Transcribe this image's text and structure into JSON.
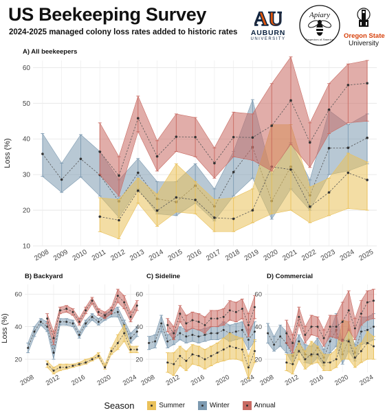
{
  "header": {
    "title": "US Beekeeping Survey",
    "subtitle": "2024-2025 managed colony loss rates added to historic rates"
  },
  "logos": {
    "auburn": {
      "name": "AUBURN",
      "sub": "UNIVERSITY",
      "mark": "AU"
    },
    "apiary": {
      "text": "Apiary",
      "sub": "Inspectors of America",
      "icon": "bee-icon"
    },
    "osu": {
      "name1": "Oregon State",
      "name2": "University",
      "icon": "tower-icon"
    }
  },
  "colors": {
    "Summer": "#eac15a",
    "Winter": "#7d9ab1",
    "Annual": "#c86a62"
  },
  "legend": {
    "title": "Season",
    "items": [
      "Summer",
      "Winter",
      "Annual"
    ]
  },
  "chart_data": [
    {
      "type": "line",
      "title": "A) All beekeepers",
      "ylabel": "Loss (%)",
      "ylim": [
        10,
        62
      ],
      "yticks": [
        10,
        20,
        30,
        40,
        50,
        60
      ],
      "xlim": [
        2007.5,
        2025.5
      ],
      "xticks": [
        2008,
        2009,
        2010,
        2011,
        2012,
        2013,
        2014,
        2015,
        2016,
        2017,
        2018,
        2019,
        2020,
        2021,
        2022,
        2023,
        2024,
        2025
      ],
      "grid": true,
      "series": [
        {
          "name": "Winter",
          "x": [
            2008,
            2009,
            2010,
            2011,
            2012,
            2013,
            2014,
            2015,
            2016,
            2017,
            2018,
            2019,
            2020,
            2021,
            2022,
            2023,
            2024,
            2025
          ],
          "y": [
            35.8,
            28.6,
            34.4,
            29.9,
            22.5,
            30.5,
            23.2,
            22.3,
            26.9,
            21.1,
            30.7,
            37.7,
            22.6,
            32.2,
            24.2,
            37.4,
            37.5,
            40.3
          ],
          "lower": [
            29.5,
            25.0,
            29.3,
            24.0,
            18.0,
            26.0,
            19.0,
            18.5,
            22.0,
            17.0,
            24.0,
            29.0,
            17.5,
            26.0,
            20.0,
            30.0,
            31.0,
            33.0
          ],
          "upper": [
            41.5,
            33.2,
            41.2,
            36.5,
            28.5,
            34.5,
            28.0,
            28.0,
            33.0,
            26.0,
            36.5,
            51.0,
            30.0,
            39.0,
            28.5,
            48.0,
            44.0,
            47.0
          ]
        },
        {
          "name": "Summer",
          "x": [
            2011,
            2012,
            2013,
            2014,
            2015,
            2016,
            2017,
            2018,
            2019,
            2020,
            2021,
            2022,
            2023,
            2024,
            2025
          ],
          "y": [
            18.2,
            17.2,
            25.5,
            19.9,
            23.6,
            22.9,
            17.9,
            17.6,
            20.0,
            32.2,
            31.4,
            21.0,
            25.0,
            30.5,
            28.5
          ],
          "lower": [
            14.0,
            12.0,
            22.0,
            15.5,
            19.5,
            19.0,
            14.0,
            14.0,
            16.5,
            19.0,
            20.0,
            16.5,
            18.5,
            20.5,
            20.0
          ],
          "upper": [
            23.5,
            23.0,
            29.0,
            24.5,
            33.0,
            28.0,
            23.0,
            23.5,
            26.0,
            44.0,
            44.0,
            26.5,
            29.0,
            36.0,
            33.5
          ]
        },
        {
          "name": "Annual",
          "x": [
            2011,
            2012,
            2013,
            2014,
            2015,
            2016,
            2017,
            2018,
            2019,
            2020,
            2021,
            2022,
            2023,
            2024,
            2025
          ],
          "y": [
            36.4,
            29.7,
            45.8,
            35.1,
            40.6,
            40.5,
            33.2,
            40.5,
            40.4,
            43.7,
            50.8,
            39.0,
            48.2,
            55.1,
            55.6
          ],
          "lower": [
            30.0,
            24.0,
            42.0,
            31.0,
            36.5,
            35.0,
            29.0,
            35.0,
            34.0,
            31.0,
            38.5,
            32.0,
            41.5,
            44.5,
            45.0
          ],
          "upper": [
            44.5,
            35.0,
            52.0,
            39.5,
            47.0,
            46.0,
            37.5,
            47.5,
            47.0,
            55.5,
            63.0,
            44.5,
            55.5,
            61.0,
            62.0
          ]
        }
      ]
    },
    {
      "type": "line",
      "title": "B) Backyard",
      "ylabel": "Loss (%)",
      "ylim": [
        12,
        66
      ],
      "yticks": [
        20,
        40,
        60
      ],
      "xlim": [
        2007.5,
        2025.5
      ],
      "xticks": [
        2008,
        2012,
        2016,
        2020,
        2024
      ],
      "grid": true,
      "series": [
        {
          "name": "Winter",
          "x": [
            2008,
            2009,
            2010,
            2011,
            2012,
            2013,
            2014,
            2015,
            2016,
            2017,
            2018,
            2019,
            2020,
            2021,
            2022,
            2023,
            2024,
            2025
          ],
          "y": [
            27,
            37,
            43,
            40,
            24,
            43,
            43,
            42,
            35,
            42,
            46,
            43,
            46,
            48,
            49,
            41,
            33,
            37
          ],
          "lower": [
            24,
            34,
            41,
            37,
            20,
            41,
            41,
            40,
            33,
            40,
            44,
            41,
            44,
            46,
            46,
            37,
            30,
            34
          ],
          "upper": [
            30,
            40,
            45,
            43,
            28,
            45,
            45,
            44,
            37,
            44,
            48,
            45,
            48,
            50,
            52,
            44,
            36,
            40
          ]
        },
        {
          "name": "Summer",
          "x": [
            2011,
            2012,
            2013,
            2014,
            2015,
            2016,
            2017,
            2018,
            2019,
            2020,
            2021,
            2022,
            2023,
            2024,
            2025
          ],
          "y": [
            17,
            13,
            15,
            15,
            16,
            17,
            18,
            20,
            22,
            15,
            25,
            30,
            36,
            26,
            26
          ],
          "lower": [
            15,
            11,
            13,
            14,
            15,
            16,
            17,
            19,
            21,
            14,
            23,
            26,
            31,
            24,
            24
          ],
          "upper": [
            19,
            15,
            17,
            17,
            17,
            18,
            20,
            21,
            24,
            17,
            27,
            35,
            41,
            28,
            28
          ]
        },
        {
          "name": "Annual",
          "x": [
            2011,
            2012,
            2013,
            2014,
            2015,
            2016,
            2017,
            2018,
            2019,
            2020,
            2021,
            2022,
            2023,
            2024,
            2025
          ],
          "y": [
            45,
            33,
            50,
            51,
            49,
            43,
            50,
            56,
            49,
            47,
            50,
            59,
            55,
            46,
            53
          ],
          "lower": [
            42,
            29,
            48,
            49,
            47,
            41,
            48,
            54,
            47,
            45,
            48,
            55,
            51,
            43,
            50
          ],
          "upper": [
            48,
            37,
            52,
            53,
            51,
            45,
            52,
            58,
            51,
            49,
            52,
            63,
            59,
            49,
            56
          ]
        }
      ]
    },
    {
      "type": "line",
      "title": "C) Sideline",
      "ylim": [
        12,
        66
      ],
      "yticks": [
        20,
        40,
        60
      ],
      "xlim": [
        2007.5,
        2025.5
      ],
      "xticks": [
        2008,
        2012,
        2016,
        2020,
        2024
      ],
      "grid": true,
      "series": [
        {
          "name": "Winter",
          "x": [
            2008,
            2009,
            2010,
            2011,
            2012,
            2013,
            2014,
            2015,
            2016,
            2017,
            2018,
            2019,
            2020,
            2021,
            2022,
            2023,
            2024,
            2025
          ],
          "y": [
            30,
            31,
            42,
            31,
            33,
            36,
            34,
            35,
            34,
            35,
            36,
            36,
            38,
            36,
            37,
            38,
            32,
            37
          ],
          "lower": [
            26,
            27,
            37,
            27,
            29,
            32,
            30,
            31,
            30,
            31,
            32,
            32,
            33,
            31,
            32,
            33,
            26,
            31
          ],
          "upper": [
            34,
            35,
            47,
            35,
            37,
            40,
            38,
            39,
            38,
            39,
            40,
            40,
            43,
            41,
            42,
            43,
            38,
            43
          ]
        },
        {
          "name": "Summer",
          "x": [
            2011,
            2012,
            2013,
            2014,
            2015,
            2016,
            2017,
            2018,
            2019,
            2020,
            2021,
            2022,
            2023,
            2024,
            2025
          ],
          "y": [
            18,
            17,
            22,
            19,
            23,
            22,
            20,
            22,
            24,
            26,
            28,
            27,
            26,
            15,
            25
          ],
          "lower": [
            12,
            10,
            16,
            13,
            17,
            16,
            14,
            16,
            18,
            19,
            20,
            20,
            19,
            8,
            18
          ],
          "upper": [
            24,
            24,
            28,
            25,
            29,
            28,
            26,
            28,
            30,
            33,
            36,
            34,
            33,
            22,
            32
          ]
        },
        {
          "name": "Annual",
          "x": [
            2011,
            2012,
            2013,
            2014,
            2015,
            2016,
            2017,
            2018,
            2019,
            2020,
            2021,
            2022,
            2023,
            2024,
            2025
          ],
          "y": [
            41,
            36,
            48,
            42,
            44,
            43,
            41,
            45,
            45,
            46,
            50,
            49,
            51,
            41,
            52
          ],
          "lower": [
            37,
            32,
            43,
            37,
            39,
            38,
            36,
            40,
            40,
            41,
            44,
            43,
            45,
            34,
            45
          ],
          "upper": [
            45,
            40,
            53,
            47,
            49,
            48,
            46,
            50,
            50,
            51,
            56,
            55,
            57,
            48,
            59
          ]
        }
      ]
    },
    {
      "type": "line",
      "title": "D) Commercial",
      "ylim": [
        12,
        66
      ],
      "yticks": [
        20,
        40,
        60
      ],
      "xlim": [
        2007.5,
        2025.5
      ],
      "xticks": [
        2008,
        2012,
        2016,
        2020,
        2024
      ],
      "grid": true,
      "series": [
        {
          "name": "Winter",
          "x": [
            2008,
            2009,
            2010,
            2011,
            2012,
            2013,
            2014,
            2015,
            2016,
            2017,
            2018,
            2019,
            2020,
            2021,
            2022,
            2023,
            2024,
            2025
          ],
          "y": [
            36,
            29,
            34,
            30,
            22,
            31,
            23,
            22,
            27,
            21,
            31,
            38,
            23,
            32,
            24,
            37,
            38,
            40
          ],
          "lower": [
            30,
            25,
            28,
            24,
            17,
            26,
            18,
            17,
            21,
            16,
            24,
            28,
            17,
            25,
            19,
            29,
            30,
            32
          ],
          "upper": [
            42,
            34,
            41,
            37,
            28,
            35,
            29,
            28,
            33,
            26,
            37,
            48,
            30,
            39,
            29,
            46,
            46,
            48
          ]
        },
        {
          "name": "Summer",
          "x": [
            2011,
            2012,
            2013,
            2014,
            2015,
            2016,
            2017,
            2018,
            2019,
            2020,
            2021,
            2022,
            2023,
            2024,
            2025
          ],
          "y": [
            18,
            17,
            25,
            20,
            23,
            23,
            18,
            18,
            20,
            32,
            31,
            21,
            25,
            30,
            28
          ],
          "lower": [
            13,
            11,
            20,
            14,
            17,
            18,
            13,
            13,
            15,
            20,
            20,
            15,
            18,
            20,
            20
          ],
          "upper": [
            23,
            23,
            30,
            25,
            31,
            28,
            23,
            23,
            26,
            44,
            43,
            27,
            30,
            37,
            34
          ]
        },
        {
          "name": "Annual",
          "x": [
            2011,
            2012,
            2013,
            2014,
            2015,
            2016,
            2017,
            2018,
            2019,
            2020,
            2021,
            2022,
            2023,
            2024,
            2025
          ],
          "y": [
            36,
            30,
            46,
            35,
            40,
            40,
            33,
            40,
            40,
            43,
            50,
            39,
            48,
            55,
            56
          ],
          "lower": [
            30,
            24,
            41,
            30,
            35,
            34,
            28,
            34,
            33,
            31,
            38,
            32,
            41,
            44,
            45
          ],
          "upper": [
            44,
            35,
            52,
            40,
            47,
            46,
            38,
            47,
            47,
            55,
            62,
            45,
            56,
            62,
            63
          ]
        }
      ]
    }
  ]
}
